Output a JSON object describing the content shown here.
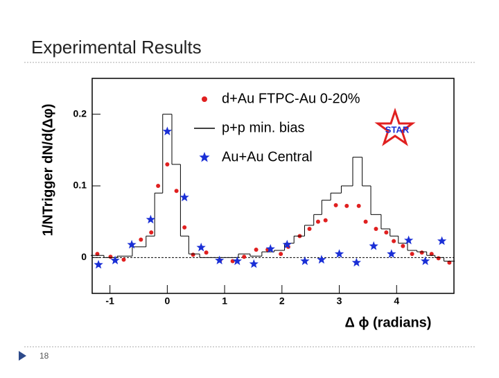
{
  "slide": {
    "title": "Experimental Results",
    "page_number": "18"
  },
  "chart_data": {
    "type": "scatter",
    "x_label": "Δ ϕ (radians)",
    "y_label": "1/NTrigger dN/d(Δφ)",
    "logo": "STAR",
    "xlim": [
      -1.31,
      5.0
    ],
    "ylim": [
      -0.05,
      0.25
    ],
    "xticks": [
      -1,
      0,
      1,
      2,
      3,
      4
    ],
    "yticks": [
      0,
      0.1,
      0.2
    ],
    "zero_line": true,
    "legend": "top-right",
    "series": [
      {
        "name": "d+Au FTPC-Au 0-20%",
        "color": "#e02020",
        "marker": "circle",
        "x": [
          -1.22,
          -0.99,
          -0.76,
          -0.46,
          -0.28,
          -0.16,
          0,
          0.16,
          0.3,
          0.45,
          0.68,
          0.92,
          1.14,
          1.34,
          1.55,
          1.75,
          1.98,
          2.11,
          2.31,
          2.48,
          2.63,
          2.76,
          2.94,
          3.13,
          3.34,
          3.46,
          3.64,
          3.82,
          3.95,
          4.11,
          4.27,
          4.44,
          4.61,
          4.73,
          4.92
        ],
        "values": [
          0.005,
          0.001,
          -0.003,
          0.025,
          0.035,
          0.1,
          0.13,
          0.093,
          0.042,
          0.004,
          0.007,
          -0.004,
          -0.005,
          0.001,
          0.011,
          0.011,
          0.005,
          0.015,
          0.03,
          0.04,
          0.05,
          0.052,
          0.073,
          0.072,
          0.072,
          0.05,
          0.04,
          0.035,
          0.023,
          0.016,
          0.005,
          0.007,
          0.005,
          -0.001,
          -0.007
        ]
      },
      {
        "name": "p+p min. bias",
        "color": "#000000",
        "marker": "step",
        "x": [
          -1.22,
          -0.99,
          -0.76,
          -0.46,
          -0.28,
          -0.16,
          0,
          0.16,
          0.3,
          0.45,
          0.68,
          0.92,
          1.14,
          1.34,
          1.55,
          1.75,
          1.98,
          2.11,
          2.31,
          2.48,
          2.63,
          2.76,
          2.94,
          3.13,
          3.34,
          3.46,
          3.64,
          3.82,
          3.95,
          4.11,
          4.27,
          4.44,
          4.61,
          4.73,
          4.92
        ],
        "values": [
          0.003,
          0.0,
          0.002,
          0.015,
          0.03,
          0.09,
          0.2,
          0.13,
          0.03,
          0.005,
          0.0,
          0.0,
          0.0,
          0.005,
          0.002,
          0.008,
          0.01,
          0.02,
          0.03,
          0.045,
          0.06,
          0.08,
          0.09,
          0.1,
          0.14,
          0.1,
          0.06,
          0.04,
          0.03,
          0.02,
          0.01,
          0.008,
          0.003,
          0.0,
          -0.005
        ]
      },
      {
        "name": "Au+Au Central",
        "color": "#1a2fd6",
        "marker": "star",
        "x": [
          -1.2,
          -0.91,
          -0.62,
          -0.29,
          0,
          0.3,
          0.59,
          0.91,
          1.22,
          1.51,
          1.8,
          2.09,
          2.4,
          2.69,
          3.0,
          3.3,
          3.6,
          3.91,
          4.21,
          4.5,
          4.79
        ],
        "values": [
          -0.01,
          -0.004,
          0.018,
          0.053,
          0.176,
          0.084,
          0.014,
          -0.004,
          -0.005,
          -0.009,
          0.012,
          0.018,
          -0.005,
          -0.003,
          0.005,
          -0.007,
          0.016,
          0.005,
          0.024,
          -0.005,
          0.023
        ]
      }
    ]
  }
}
